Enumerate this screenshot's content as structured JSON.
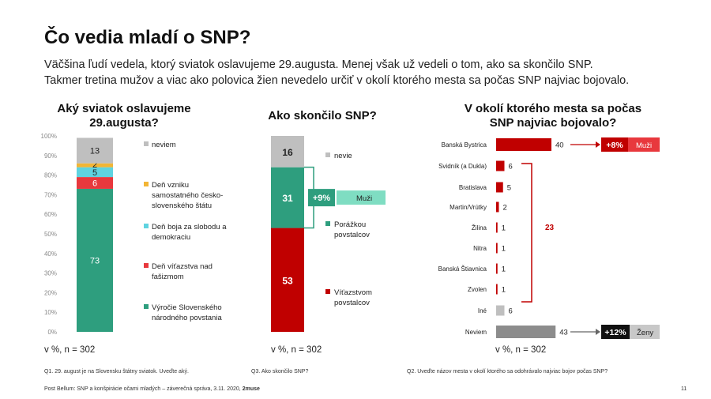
{
  "header": {
    "title": "Čo vedia mladí o SNP?",
    "subtitle_1": "Väčšina ľudí vedela, ktorý sviatok oslavujeme 29.augusta. Menej však už vedeli o tom, ako sa skončilo SNP.",
    "subtitle_2": "Takmer tretina mužov a viac ako polovica žien nevedelo určiť v okolí ktorého mesta sa počas SNP najviac bojovalo."
  },
  "colors": {
    "gray": "#BFBFBF",
    "yellow": "#F2B535",
    "cyan": "#5FD3E0",
    "red": "#E8383D",
    "green": "#2E9E7E",
    "darkred": "#C00000",
    "mint": "#7FDDC2",
    "darkgray": "#8C8C8C"
  },
  "chart_data": [
    {
      "type": "bar",
      "stacked": true,
      "title": "Aký sviatok oslavujeme 29.augusta?",
      "note": "v %, n = 302",
      "question": "Q1.  29. august je na Slovensku štátny sviatok. Uveďte aký.",
      "y_ticks": [
        "100%",
        "90%",
        "80%",
        "70%",
        "60%",
        "50%",
        "40%",
        "30%",
        "20%",
        "10%",
        "0%"
      ],
      "ylim": [
        0,
        100
      ],
      "segments": [
        {
          "name": "Výročie Slovenského národného povstania",
          "value": 73,
          "label": "73",
          "color": "#2E9E7E"
        },
        {
          "name": "Deň víťazstva nad fašizmom",
          "value": 6,
          "label": "6",
          "color": "#E8383D"
        },
        {
          "name": "Deň boja za slobodu a demokraciu",
          "value": 5,
          "label": "5",
          "color": "#5FD3E0"
        },
        {
          "name": "Deň vzniku samostatného česko-slovenského štátu",
          "value": 2,
          "label": "2",
          "color": "#F2B535"
        },
        {
          "name": "neviem",
          "value": 13,
          "label": "13",
          "color": "#BFBFBF"
        }
      ],
      "legend": [
        {
          "lines": [
            "neviem"
          ],
          "color": "#BFBFBF"
        },
        {
          "lines": [
            "Deň vzniku",
            "samostatného česko-",
            "slovenského štátu"
          ],
          "color": "#F2B535"
        },
        {
          "lines": [
            "Deň boja za slobodu a",
            "demokraciu"
          ],
          "color": "#5FD3E0"
        },
        {
          "lines": [
            "Deň víťazstva nad",
            "fašizmom"
          ],
          "color": "#E8383D"
        },
        {
          "lines": [
            "Výročie Slovenského",
            "národného povstania"
          ],
          "color": "#2E9E7E"
        }
      ]
    },
    {
      "type": "bar",
      "stacked": true,
      "title": "Ako skončilo SNP?",
      "note": "v %, n = 302",
      "question": "Q3.  Ako skončilo SNP?",
      "ylim": [
        0,
        100
      ],
      "segments": [
        {
          "name": "Víťazstvom povstalcov",
          "value": 53,
          "label": "53",
          "color": "#C00000"
        },
        {
          "name": "Porážkou povstalcov",
          "value": 31,
          "label": "31",
          "color": "#2E9E7E"
        },
        {
          "name": "nevie",
          "value": 16,
          "label": "16",
          "color": "#BFBFBF"
        }
      ],
      "legend": [
        {
          "lines": [
            "nevie"
          ],
          "color": "#BFBFBF"
        },
        {
          "lines": [
            "Porážkou",
            "povstalcov"
          ],
          "color": "#2E9E7E"
        },
        {
          "lines": [
            "Víťazstvom",
            "povstalcov"
          ],
          "color": "#C00000"
        }
      ],
      "annotation": {
        "value": "+9%",
        "group": "Muži"
      }
    },
    {
      "type": "bar",
      "orientation": "horizontal",
      "title": "V okolí ktorého mesta sa počas SNP najviac bojovalo?",
      "note": "v %, n = 302",
      "question": "Q2.  Uveďte názov mesta v okolí ktorého sa odohrávalo najviac bojov počas SNP?",
      "categories": [
        "Banská Bystrica",
        "Svidník (a Dukla)",
        "Bratislava",
        "Martin/Vrútky",
        "Žilina",
        "Nitra",
        "Banská Štiavnica",
        "Zvolen",
        "Iné",
        "Neviem"
      ],
      "values": [
        40,
        6,
        5,
        2,
        1,
        1,
        1,
        1,
        6,
        43
      ],
      "bar_colors": [
        "#C00000",
        "#C00000",
        "#C00000",
        "#C00000",
        "#C00000",
        "#C00000",
        "#C00000",
        "#C00000",
        "#BFBFBF",
        "#8C8C8C"
      ],
      "bracket_total": "23",
      "annotations": [
        {
          "value": "+8%",
          "group": "Muži"
        },
        {
          "value": "+12%",
          "group": "Ženy"
        }
      ]
    }
  ],
  "footer": {
    "source": "Post Bellum: SNP a konšpirácie očami mladých – záverečná správa, 3.11. 2020,",
    "brand": "2muse",
    "page": "11"
  }
}
